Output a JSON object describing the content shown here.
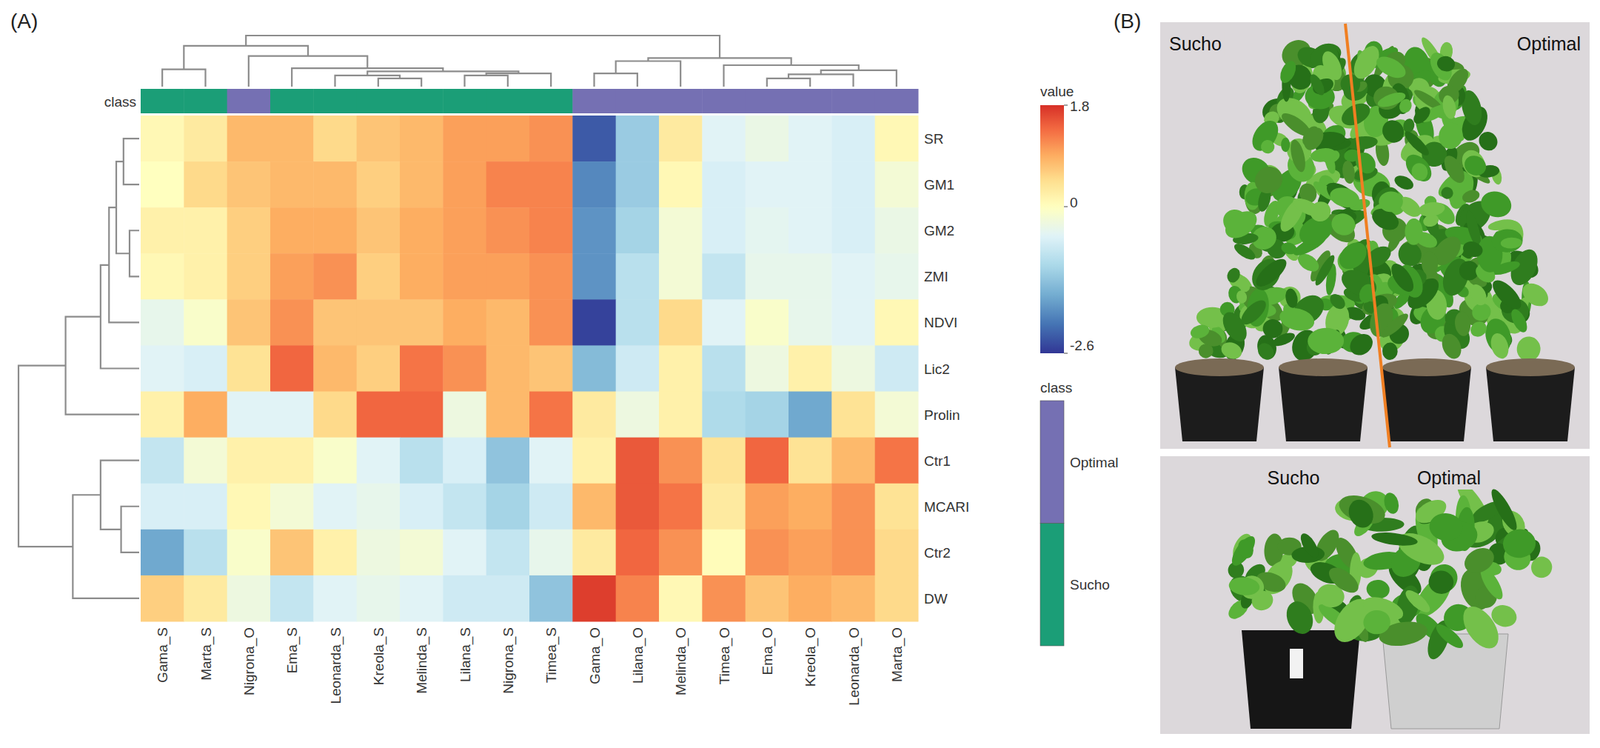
{
  "chart_data": {
    "type": "heatmap",
    "title": "(A)",
    "x": [
      "Gama_S",
      "Marta_S",
      "Nigrona_O",
      "Ema_S",
      "Leonarda_S",
      "Kreola_S",
      "Melinda_S",
      "Lilana_S",
      "Nigrona_S",
      "Timea_S",
      "Gama_O",
      "Lilana_O",
      "Melinda_O",
      "Timea_O",
      "Ema_O",
      "Kreola_O",
      "Leonarda_O",
      "Marta_O"
    ],
    "y": [
      "SR",
      "GM1",
      "GM2",
      "ZMI",
      "NDVI",
      "Lic2",
      "Prolin",
      "Ctr1",
      "MCARI",
      "Ctr2",
      "DW"
    ],
    "values": [
      [
        0.1,
        0.3,
        0.8,
        0.8,
        0.5,
        0.7,
        0.8,
        1.0,
        1.0,
        1.1,
        -2.3,
        -1.2,
        0.3,
        -0.5,
        -0.35,
        -0.5,
        -0.6,
        0.1
      ],
      [
        0.0,
        0.5,
        0.7,
        0.8,
        0.8,
        0.6,
        0.8,
        1.0,
        1.2,
        1.2,
        -1.9,
        -1.2,
        0.1,
        -0.6,
        -0.5,
        -0.5,
        -0.6,
        -0.2
      ],
      [
        0.2,
        0.2,
        0.6,
        0.9,
        0.9,
        0.7,
        0.9,
        1.0,
        1.1,
        1.2,
        -1.8,
        -1.1,
        -0.2,
        -0.6,
        -0.45,
        -0.5,
        -0.6,
        -0.35
      ],
      [
        0.1,
        0.2,
        0.6,
        1.0,
        1.1,
        0.6,
        0.9,
        1.0,
        1.0,
        1.1,
        -1.8,
        -0.9,
        -0.2,
        -0.8,
        -0.4,
        -0.4,
        -0.5,
        -0.4
      ],
      [
        -0.4,
        -0.1,
        0.7,
        1.1,
        0.7,
        0.7,
        0.7,
        0.9,
        0.8,
        1.1,
        -2.5,
        -0.9,
        0.5,
        -0.5,
        -0.1,
        -0.4,
        -0.5,
        0.1
      ],
      [
        -0.5,
        -0.6,
        0.4,
        1.4,
        0.8,
        0.6,
        1.3,
        1.1,
        0.8,
        0.7,
        -1.4,
        -0.7,
        0.2,
        -0.9,
        -0.3,
        0.2,
        -0.3,
        -0.7
      ],
      [
        0.2,
        0.9,
        -0.5,
        -0.5,
        0.5,
        1.4,
        1.4,
        -0.3,
        0.8,
        1.3,
        0.3,
        -0.3,
        0.2,
        -1.0,
        -1.1,
        -1.6,
        0.4,
        -0.2
      ],
      [
        -0.8,
        -0.2,
        0.2,
        0.2,
        -0.1,
        -0.5,
        -0.9,
        -0.6,
        -1.3,
        -0.5,
        0.2,
        1.5,
        1.1,
        0.4,
        1.4,
        0.4,
        0.8,
        1.3
      ],
      [
        -0.6,
        -0.6,
        0.1,
        -0.2,
        -0.5,
        -0.4,
        -0.6,
        -0.8,
        -1.1,
        -0.7,
        0.8,
        1.5,
        1.3,
        0.3,
        1.0,
        0.9,
        1.1,
        0.4
      ],
      [
        -1.6,
        -0.9,
        -0.1,
        0.7,
        0.2,
        -0.3,
        -0.2,
        -0.5,
        -0.8,
        -0.4,
        0.3,
        1.4,
        1.1,
        0.05,
        1.1,
        1.0,
        1.1,
        0.5
      ],
      [
        0.6,
        0.3,
        -0.3,
        -0.8,
        -0.5,
        -0.4,
        -0.5,
        -0.7,
        -0.7,
        -1.3,
        1.7,
        1.2,
        0.1,
        1.1,
        0.7,
        0.9,
        0.8,
        0.5
      ]
    ],
    "class_label": "class",
    "classes": [
      "Sucho",
      "Sucho",
      "Optimal",
      "Sucho",
      "Sucho",
      "Sucho",
      "Sucho",
      "Sucho",
      "Sucho",
      "Sucho",
      "Optimal",
      "Optimal",
      "Optimal",
      "Optimal",
      "Optimal",
      "Optimal",
      "Optimal",
      "Optimal"
    ],
    "class_legend": [
      {
        "name": "Optimal",
        "color": "#7570b3"
      },
      {
        "name": "Sucho",
        "color": "#1b9e77"
      }
    ],
    "colorbar": {
      "title": "value",
      "range": [
        -2.6,
        1.8
      ],
      "ticks": [
        1.8,
        0,
        -2.6
      ]
    },
    "col_dendrogram": {
      "h": 10,
      "c": [
        {
          "h": 8,
          "c": [
            {
              "h": 3.4,
              "c": [
                0,
                1
              ]
            },
            {
              "h": 6,
              "c": [
                2,
                {
                  "h": 3.6,
                  "c": [
                    3,
                    {
                      "h": 3,
                      "c": [
                        {
                          "h": 2.2,
                          "c": [
                            4,
                            {
                              "h": 1.6,
                              "c": [
                                5,
                                6
                              ]
                            }
                          ]
                        },
                        {
                          "h": 2.6,
                          "c": [
                            {
                              "h": 2.2,
                              "c": [
                                7,
                                8
                              ]
                            },
                            9
                          ]
                        }
                      ]
                    }
                  ]
                }
              ]
            }
          ]
        },
        {
          "h": 5.6,
          "c": [
            {
              "h": 5,
              "c": [
                {
                  "h": 2.6,
                  "c": [
                    10,
                    11
                  ]
                },
                12
              ]
            },
            {
              "h": 4.2,
              "c": [
                13,
                {
                  "h": 3.2,
                  "c": [
                    {
                      "h": 2.4,
                      "c": [
                        {
                          "h": 1.6,
                          "c": [
                            14,
                            15
                          ]
                        },
                        16
                      ]
                    },
                    17
                  ]
                }
              ]
            }
          ]
        }
      ]
    },
    "row_dendrogram": {
      "h": 10,
      "c": [
        {
          "h": 6.1,
          "c": [
            {
              "h": 3.2,
              "c": [
                {
                  "h": 2.5,
                  "c": [
                    {
                      "h": 1.9,
                      "c": [
                        {
                          "h": 1.3,
                          "c": [
                            0,
                            1
                          ]
                        },
                        {
                          "h": 0.8,
                          "c": [
                            2,
                            3
                          ]
                        }
                      ]
                    },
                    4
                  ]
                },
                5
              ]
            },
            6
          ]
        },
        {
          "h": 5.5,
          "c": [
            {
              "h": 3.2,
              "c": [
                7,
                {
                  "h": 1.5,
                  "c": [
                    8,
                    9
                  ]
                }
              ]
            },
            10
          ]
        }
      ]
    }
  },
  "panel_b": {
    "label": "(B)",
    "top": {
      "left": "Sucho",
      "right": "Optimal"
    },
    "bottom": {
      "left": "Sucho",
      "right": "Optimal"
    }
  }
}
